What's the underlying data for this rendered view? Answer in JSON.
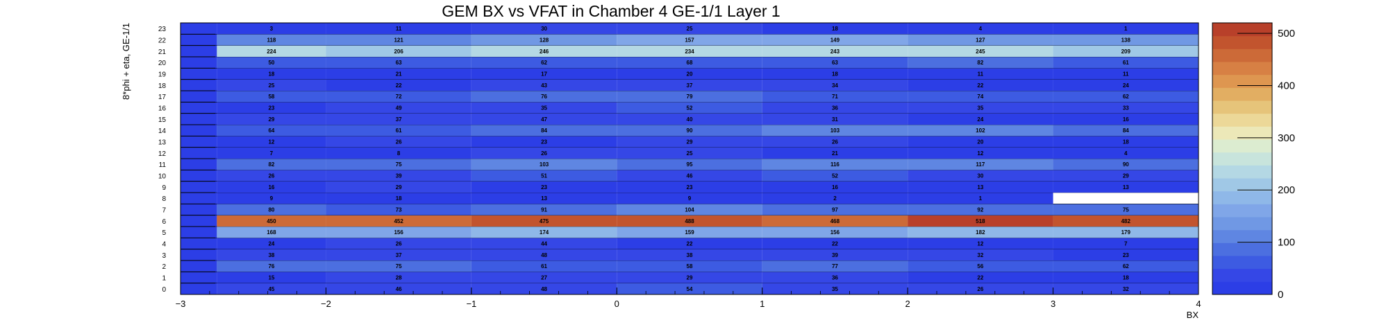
{
  "chart_data": {
    "type": "heatmap",
    "title": "GEM BX vs VFAT in Chamber 4 GE-1/1 Layer 1",
    "xlabel": "BX",
    "ylabel": "8*phi + eta, GE-1/1",
    "x_bins": [
      -2.75,
      -2,
      -1,
      0,
      1,
      2,
      3
    ],
    "x_ticks": [
      "−3",
      "−2",
      "−1",
      "0",
      "1",
      "2",
      "3",
      "4"
    ],
    "xlim": [
      -3,
      4
    ],
    "y_bins": [
      0,
      1,
      2,
      3,
      4,
      5,
      6,
      7,
      8,
      9,
      10,
      11,
      12,
      13,
      14,
      15,
      16,
      17,
      18,
      19,
      20,
      21,
      22,
      23
    ],
    "y_ticks": [
      "0",
      "1",
      "2",
      "3",
      "4",
      "5",
      "6",
      "7",
      "8",
      "9",
      "10",
      "11",
      "12",
      "13",
      "14",
      "15",
      "16",
      "17",
      "18",
      "19",
      "20",
      "21",
      "22",
      "23"
    ],
    "values": [
      [
        45,
        46,
        48,
        54,
        35,
        26,
        32
      ],
      [
        15,
        28,
        27,
        29,
        36,
        22,
        18
      ],
      [
        76,
        75,
        61,
        58,
        77,
        56,
        62
      ],
      [
        38,
        37,
        48,
        38,
        39,
        32,
        23
      ],
      [
        24,
        26,
        44,
        22,
        22,
        12,
        7
      ],
      [
        168,
        156,
        174,
        159,
        156,
        182,
        179
      ],
      [
        450,
        452,
        475,
        488,
        468,
        518,
        482
      ],
      [
        80,
        73,
        91,
        104,
        97,
        92,
        75
      ],
      [
        9,
        18,
        13,
        9,
        2,
        1,
        0
      ],
      [
        16,
        29,
        23,
        23,
        16,
        13,
        13
      ],
      [
        26,
        39,
        51,
        46,
        52,
        30,
        29
      ],
      [
        82,
        75,
        103,
        95,
        116,
        117,
        90
      ],
      [
        7,
        8,
        26,
        25,
        21,
        12,
        4
      ],
      [
        12,
        26,
        23,
        29,
        26,
        20,
        18
      ],
      [
        64,
        61,
        84,
        90,
        103,
        102,
        84
      ],
      [
        29,
        37,
        47,
        40,
        31,
        24,
        16
      ],
      [
        23,
        49,
        35,
        52,
        36,
        35,
        33
      ],
      [
        58,
        72,
        76,
        79,
        71,
        74,
        62
      ],
      [
        25,
        22,
        43,
        37,
        34,
        22,
        24
      ],
      [
        18,
        21,
        17,
        20,
        18,
        11,
        11
      ],
      [
        50,
        63,
        62,
        68,
        63,
        82,
        61
      ],
      [
        224,
        206,
        246,
        234,
        243,
        245,
        209
      ],
      [
        118,
        121,
        128,
        157,
        149,
        127,
        138
      ],
      [
        3,
        11,
        30,
        25,
        18,
        4,
        1
      ]
    ],
    "zlim": [
      0,
      520
    ],
    "colorbar_ticks": [
      "0",
      "100",
      "200",
      "300",
      "400",
      "500"
    ],
    "colorbar_tick_values": [
      0,
      100,
      200,
      300,
      400,
      500
    ],
    "colormap": [
      "#2c3ee6",
      "#3547e6",
      "#3d5be2",
      "#4c6fe0",
      "#5f86e2",
      "#7098e4",
      "#80a6e8",
      "#8fb8e8",
      "#a0c8e6",
      "#b4d8e4",
      "#c8e4dc",
      "#dcecd0",
      "#ece8b8",
      "#ecd898",
      "#e6c47a",
      "#e2ae62",
      "#de9650",
      "#d78044",
      "#cc6a38",
      "#c2542e",
      "#b8402a"
    ],
    "grid": false,
    "legend": "colorbar-right"
  }
}
